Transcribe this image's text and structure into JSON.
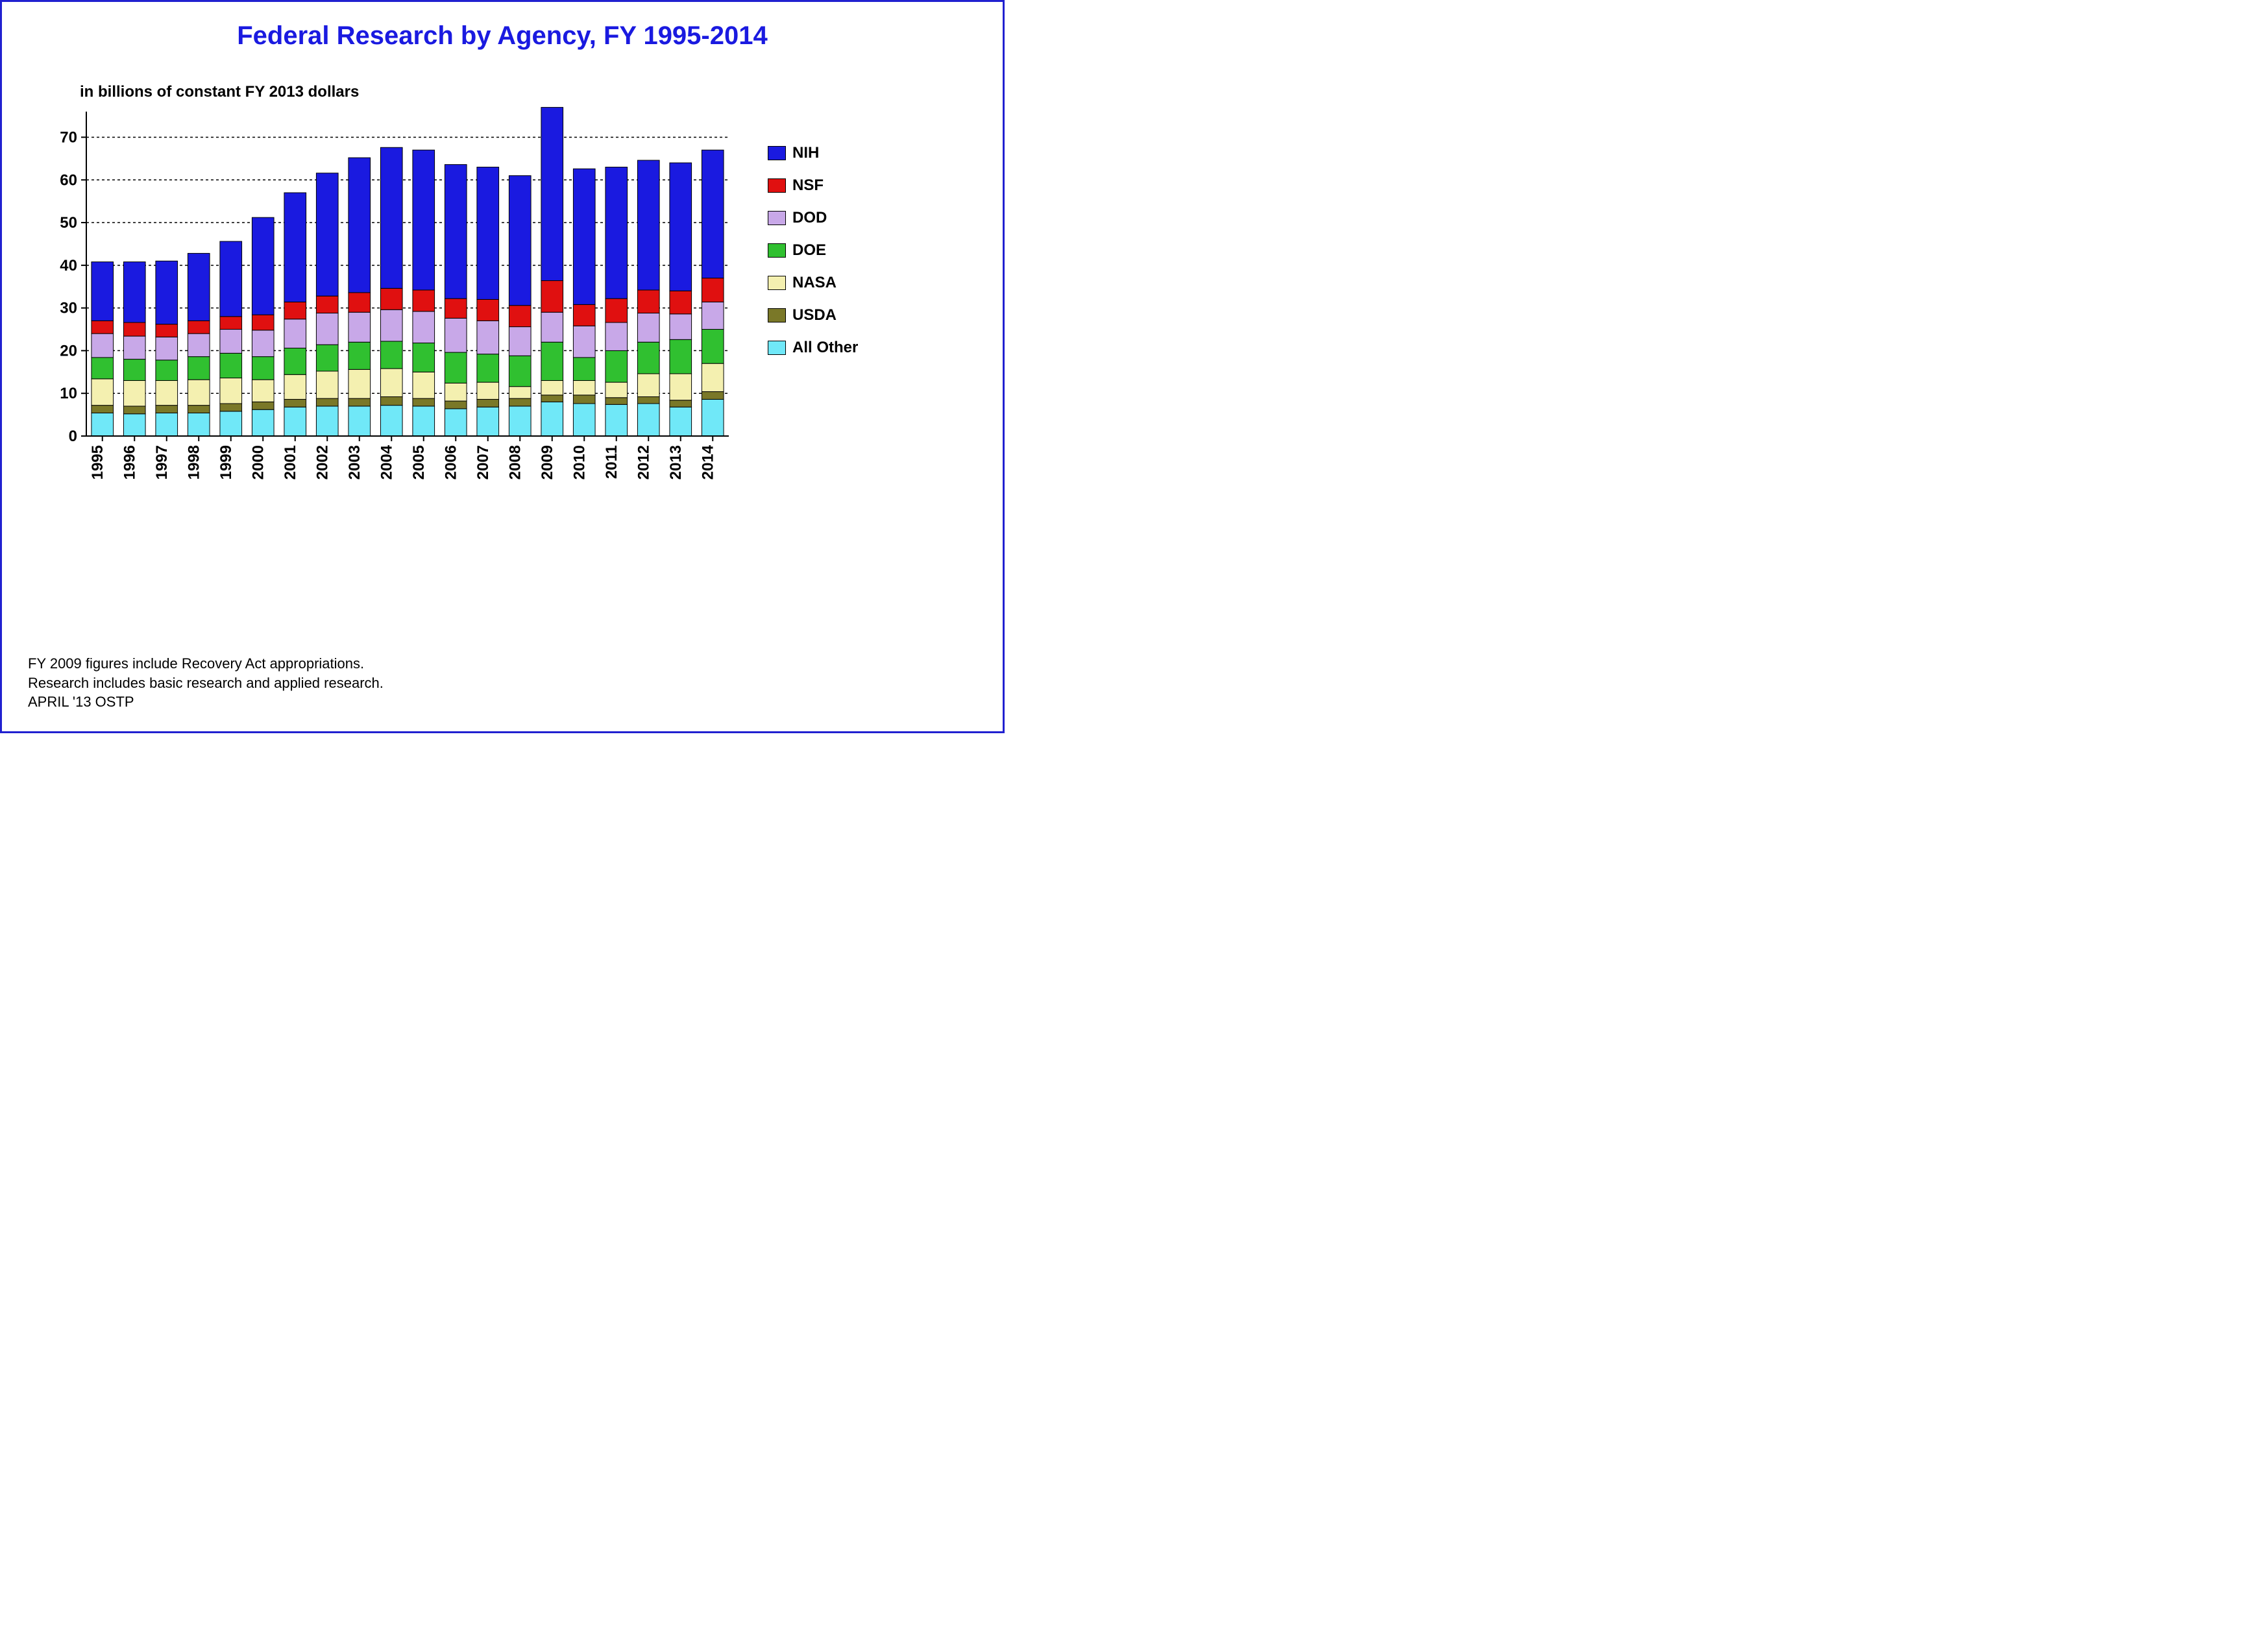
{
  "title": "Federal Research by Agency, FY 1995-2014",
  "subtitle": "in billions of constant FY 2013 dollars",
  "footnotes": [
    "FY 2009 figures include Recovery Act appropriations.",
    "Research includes basic research and applied research.",
    "APRIL '13 OSTP"
  ],
  "chart": {
    "type": "stacked-bar",
    "background_color": "#ffffff",
    "border_color": "#2020d0",
    "grid_color": "#000000",
    "grid_dash": "4,4",
    "axis_line_color": "#000000",
    "bar_outline_color": "#000000",
    "title_color": "#1a1ae0",
    "title_fontsize_pt": 30,
    "subtitle_fontsize_pt": 18,
    "axis_tick_fontsize_pt": 18,
    "legend_fontsize_pt": 18,
    "footnote_fontsize_pt": 16,
    "y_axis": {
      "min": 0,
      "max": 76,
      "tick_step": 10,
      "ticks": [
        0,
        10,
        20,
        30,
        40,
        50,
        60,
        70
      ],
      "grid_at_ticks": true
    },
    "categories": [
      "1995",
      "1996",
      "1997",
      "1998",
      "1999",
      "2000",
      "2001",
      "2002",
      "2003",
      "2004",
      "2005",
      "2006",
      "2007",
      "2008",
      "2009",
      "2010",
      "2011",
      "2012",
      "2013",
      "2014"
    ],
    "series_order_bottom_to_top": [
      "All Other",
      "USDA",
      "NASA",
      "DOE",
      "DOD",
      "NSF",
      "NIH"
    ],
    "series_colors": {
      "NIH": "#1a1ae0",
      "NSF": "#e01010",
      "DOD": "#c8a8e8",
      "DOE": "#30c030",
      "NASA": "#f4f0b0",
      "USDA": "#7a7828",
      "All Other": "#70e8f8"
    },
    "data": {
      "All Other": [
        5.4,
        5.2,
        5.4,
        5.4,
        5.8,
        6.2,
        6.8,
        7.0,
        7.0,
        7.2,
        7.0,
        6.4,
        6.8,
        7.0,
        8.0,
        7.6,
        7.4,
        7.6,
        6.8,
        8.6
      ],
      "USDA": [
        1.8,
        1.8,
        1.8,
        1.8,
        1.8,
        1.8,
        1.8,
        1.8,
        1.8,
        2.0,
        1.8,
        1.8,
        1.8,
        1.8,
        1.6,
        2.0,
        1.6,
        1.6,
        1.6,
        1.8
      ],
      "NASA": [
        6.2,
        6.0,
        5.8,
        6.0,
        6.0,
        5.2,
        5.8,
        6.4,
        6.8,
        6.6,
        6.2,
        4.2,
        4.0,
        2.8,
        3.4,
        3.4,
        3.6,
        5.4,
        6.2,
        6.6
      ],
      "DOE": [
        5.0,
        5.0,
        4.8,
        5.4,
        5.8,
        5.4,
        6.2,
        6.2,
        6.4,
        6.4,
        6.8,
        7.2,
        6.6,
        7.2,
        9.0,
        5.4,
        7.4,
        7.4,
        8.0,
        8.0
      ],
      "DOD": [
        5.6,
        5.4,
        5.4,
        5.4,
        5.6,
        6.2,
        6.8,
        7.4,
        7.0,
        7.4,
        7.4,
        8.0,
        7.8,
        6.8,
        7.0,
        7.4,
        6.6,
        6.8,
        6.0,
        6.4
      ],
      "NSF": [
        3.0,
        3.2,
        3.0,
        3.0,
        3.0,
        3.6,
        4.0,
        4.0,
        4.6,
        5.0,
        5.0,
        4.6,
        5.0,
        5.0,
        7.4,
        5.0,
        5.6,
        5.4,
        5.4,
        5.6
      ],
      "NIH": [
        13.8,
        14.2,
        14.8,
        15.8,
        17.6,
        22.8,
        25.6,
        28.8,
        31.6,
        33.0,
        32.8,
        31.4,
        31.0,
        30.4,
        40.6,
        31.8,
        30.8,
        30.4,
        30.0,
        30.0
      ]
    },
    "legend_order_top_to_bottom": [
      "NIH",
      "NSF",
      "DOD",
      "DOE",
      "NASA",
      "USDA",
      "All Other"
    ],
    "bar_width_ratio": 0.68
  }
}
